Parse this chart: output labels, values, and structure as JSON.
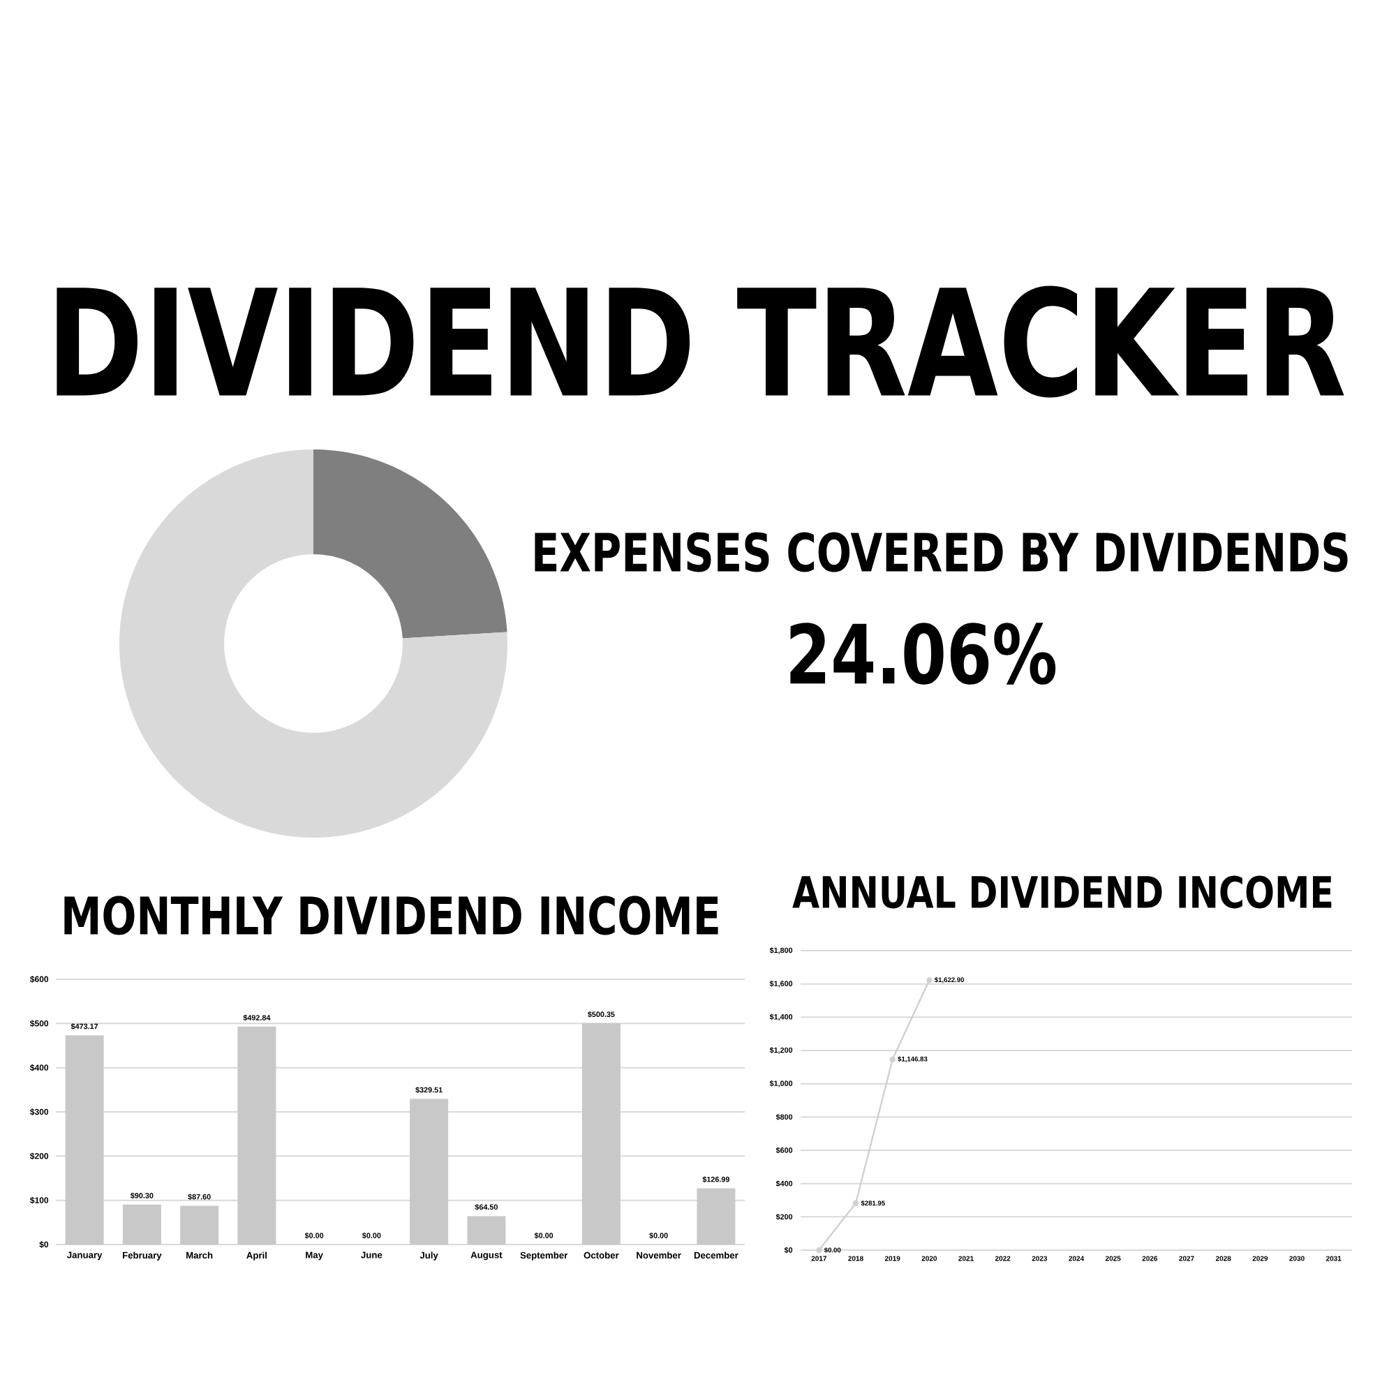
{
  "chart_data": [
    {
      "type": "other",
      "title": "DIVIDEND TRACKER"
    },
    {
      "type": "donut",
      "title": "EXPENSES COVERED BY DIVIDENDS",
      "categories": [
        null,
        null
      ],
      "values": [
        24.06,
        75.94
      ],
      "colors": [
        "#7f7f7f",
        "#d9d9d9"
      ],
      "annotations": [
        "24.06%"
      ]
    },
    {
      "type": "bar",
      "title": "MONTHLY DIVIDEND INCOME",
      "categories": [
        "January",
        "February",
        "March",
        "April",
        "May",
        "June",
        "July",
        "August",
        "September",
        "October",
        "November",
        "December"
      ],
      "values": [
        473.17,
        90.3,
        87.6,
        492.84,
        0,
        0,
        329.51,
        64.5,
        0,
        500.35,
        0,
        126.99
      ],
      "color": "#c8c8c8",
      "ylim": [
        0,
        600
      ],
      "yticks": [
        {
          "value": 0,
          "label": "$0"
        },
        {
          "value": 100,
          "label": "$100"
        },
        {
          "value": 200,
          "label": "$200"
        },
        {
          "value": 300,
          "label": "$300"
        },
        {
          "value": 400,
          "label": "$400"
        },
        {
          "value": 500,
          "label": "$500"
        },
        {
          "value": 600,
          "label": "$600"
        }
      ],
      "grid": "y",
      "value_labels": [
        "$473.17",
        "$90.30",
        "$87.60",
        "$492.84",
        "$0.00",
        "$0.00",
        "$329.51",
        "$64.50",
        "$0.00",
        "$500.35",
        "$0.00",
        "$126.99"
      ]
    },
    {
      "type": "line",
      "title": "ANNUAL DIVIDEND INCOME",
      "categories": [
        "2017",
        "2018",
        "2019",
        "2020",
        "2021",
        "2022",
        "2023",
        "2024",
        "2025",
        "2026",
        "2027",
        "2028",
        "2029",
        "2030",
        "2031"
      ],
      "values": [
        0,
        281.95,
        1146.83,
        1622.9,
        null,
        null,
        null,
        null,
        null,
        null,
        null,
        null,
        null,
        null,
        null
      ],
      "color": "#d0d0d0",
      "marker": "circle",
      "ylim": [
        0,
        1800
      ],
      "yticks": [
        {
          "value": 0,
          "label": "$0"
        },
        {
          "value": 200,
          "label": "$200"
        },
        {
          "value": 400,
          "label": "$400"
        },
        {
          "value": 600,
          "label": "$600"
        },
        {
          "value": 800,
          "label": "$800"
        },
        {
          "value": 1000,
          "label": "$1,000"
        },
        {
          "value": 1200,
          "label": "$1,200"
        },
        {
          "value": 1400,
          "label": "$1,400"
        },
        {
          "value": 1600,
          "label": "$1,600"
        },
        {
          "value": 1800,
          "label": "$1,800"
        }
      ],
      "grid": "y",
      "value_labels": [
        "$0.00",
        "$281.95",
        "$1,146.83",
        "$1,622.90",
        null,
        null,
        null,
        null,
        null,
        null,
        null,
        null,
        null,
        null,
        null
      ]
    }
  ]
}
